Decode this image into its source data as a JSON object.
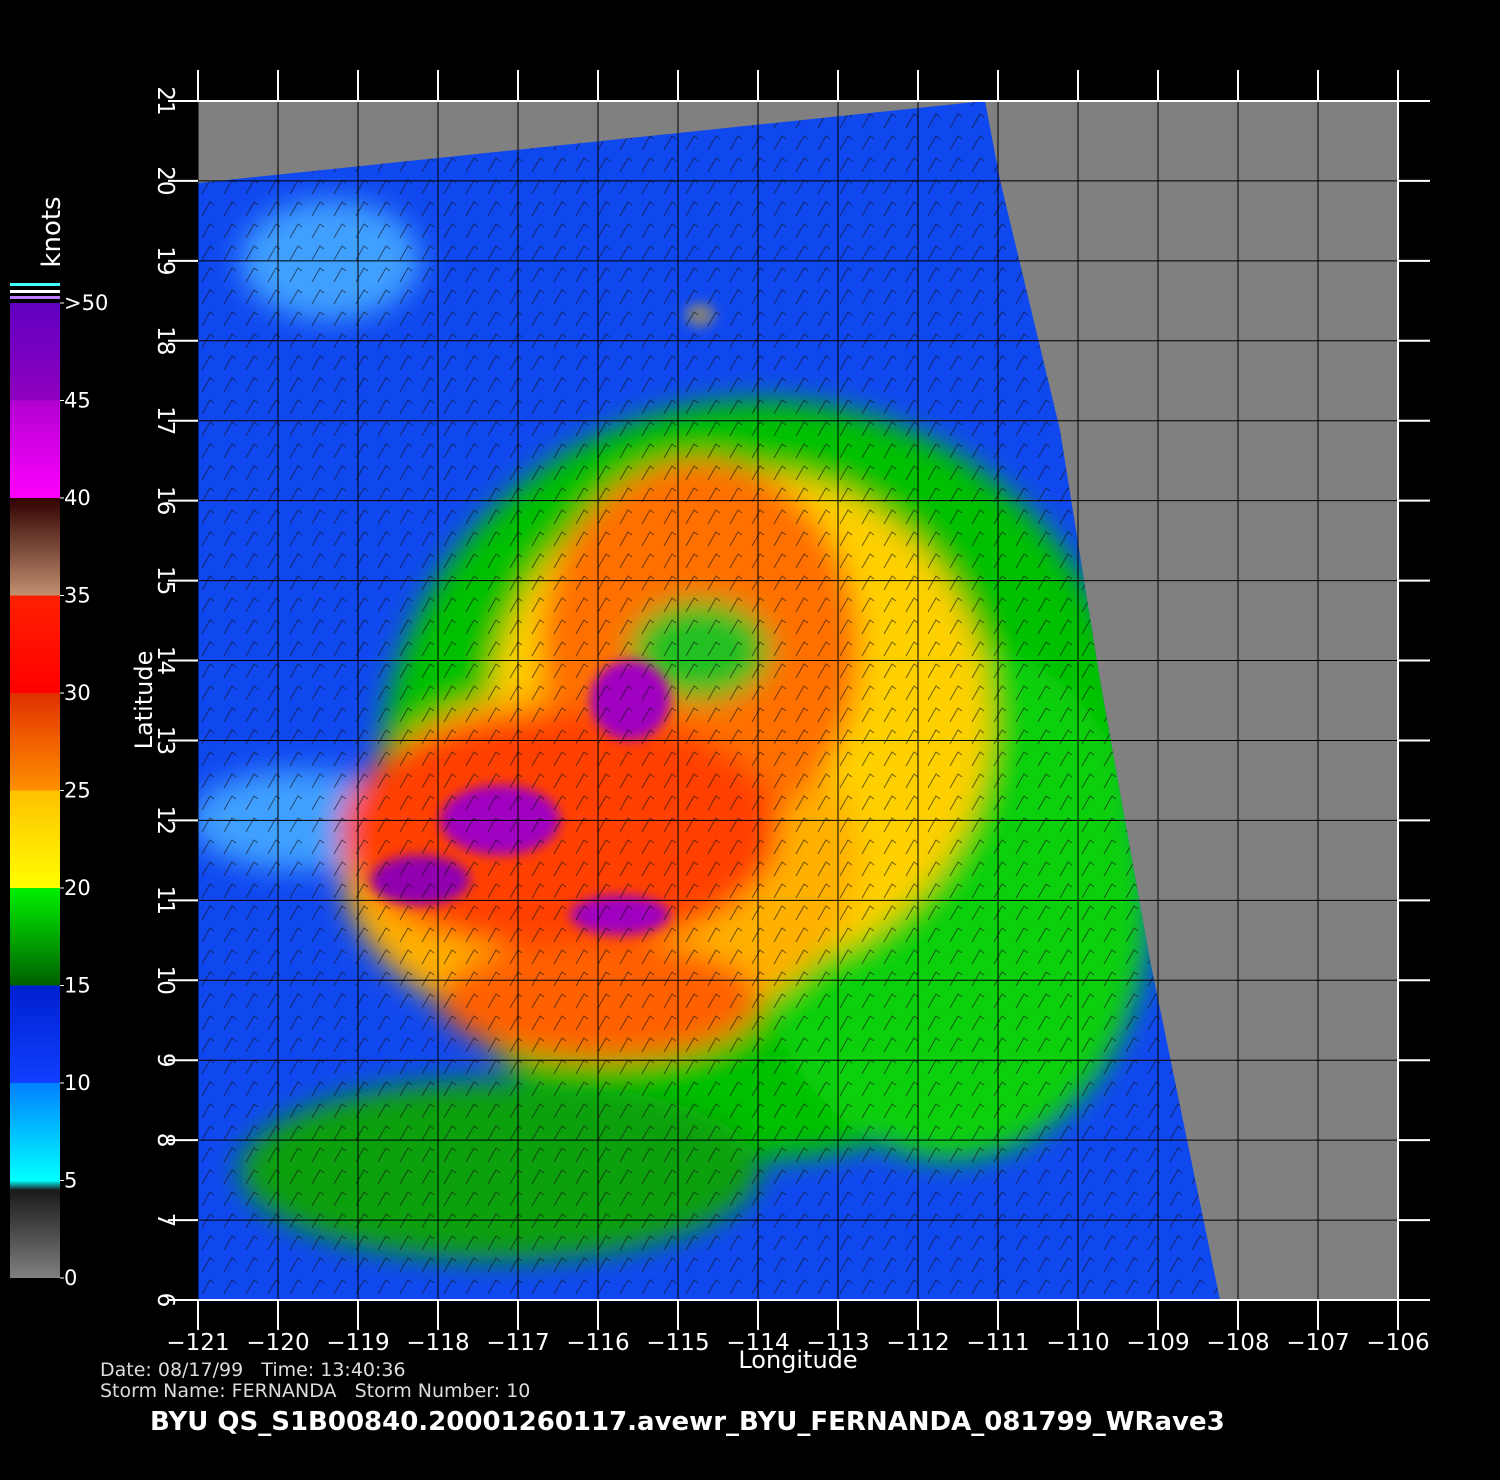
{
  "map": {
    "xlabel": "Longitude",
    "ylabel": "Latitude",
    "xlim": [
      -121,
      -106
    ],
    "ylim": [
      6,
      21
    ],
    "xticks": [
      {
        "value": -121,
        "label": "−121"
      },
      {
        "value": -120,
        "label": "−120"
      },
      {
        "value": -119,
        "label": "−119"
      },
      {
        "value": -118,
        "label": "−118"
      },
      {
        "value": -117,
        "label": "−117"
      },
      {
        "value": -116,
        "label": "−116"
      },
      {
        "value": -115,
        "label": "−115"
      },
      {
        "value": -114,
        "label": "−114"
      },
      {
        "value": -113,
        "label": "−113"
      },
      {
        "value": -112,
        "label": "−112"
      },
      {
        "value": -111,
        "label": "−111"
      },
      {
        "value": -110,
        "label": "−110"
      },
      {
        "value": -109,
        "label": "−109"
      },
      {
        "value": -108,
        "label": "−108"
      },
      {
        "value": -107,
        "label": "−107"
      },
      {
        "value": -106,
        "label": "−106"
      }
    ],
    "yticks": [
      6,
      7,
      8,
      9,
      10,
      11,
      12,
      13,
      14,
      15,
      16,
      17,
      18,
      19,
      20,
      21
    ],
    "grid": true,
    "colorbar": {
      "label": "knots",
      "lim": [
        0,
        50
      ],
      "ticks": [
        0,
        5,
        10,
        15,
        20,
        25,
        30,
        35,
        40,
        45,
        {
          "value": 50,
          "label": ">50"
        }
      ]
    },
    "info": {
      "line1": "Date: 08/17/99   Time: 13:40:36",
      "line2": "Storm Name: FERNANDA   Storm Number: 10",
      "file": "BYU  QS_S1B00840.20001260117.avewr_BYU_FERNANDA_081799_WRave3"
    }
  }
}
